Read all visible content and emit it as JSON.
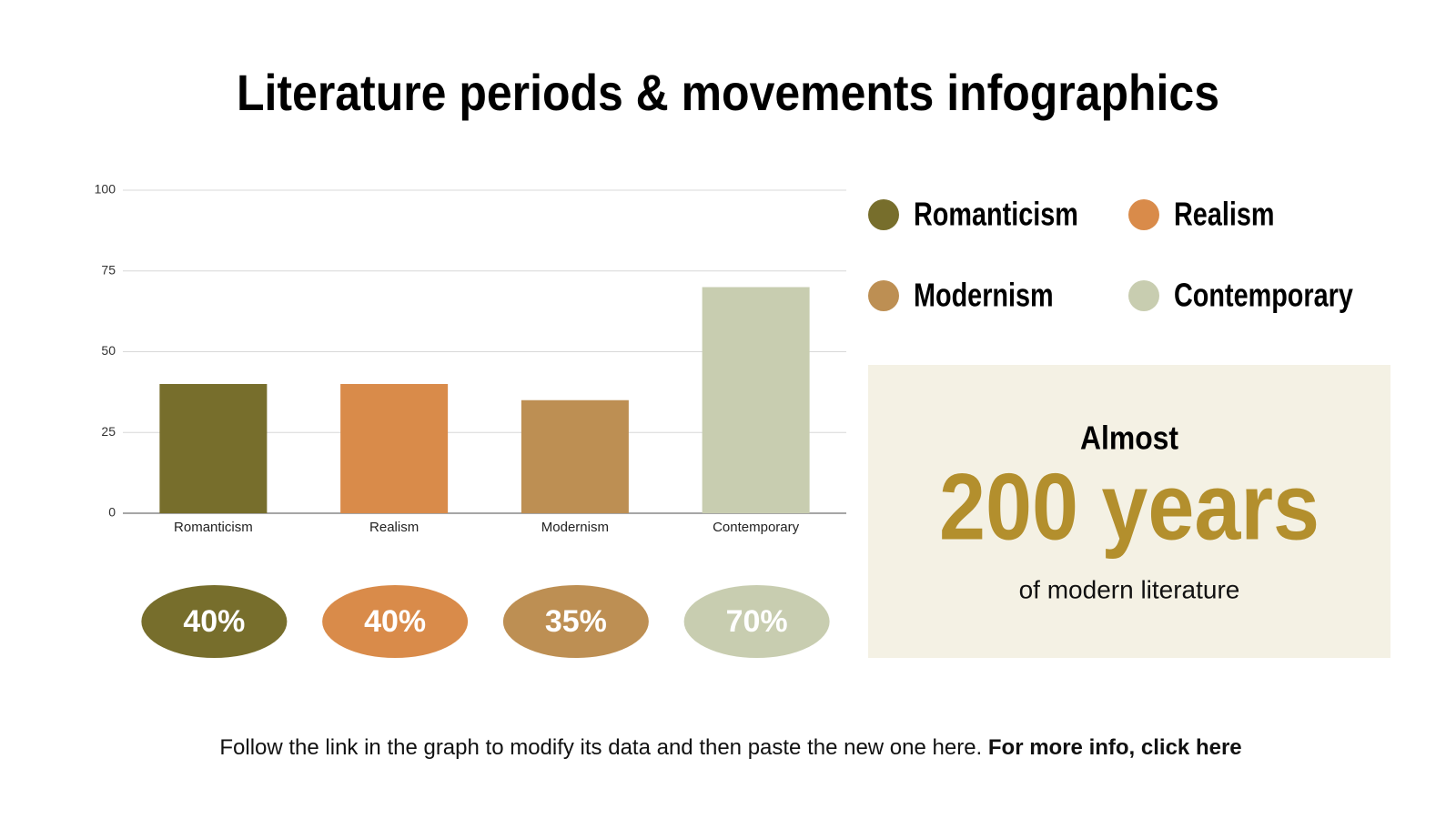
{
  "title": "Literature periods & movements infographics",
  "chart_data": {
    "type": "bar",
    "categories": [
      "Romanticism",
      "Realism",
      "Modernism",
      "Contemporary"
    ],
    "values": [
      40,
      40,
      35,
      70
    ],
    "value_labels": [
      "40%",
      "40%",
      "35%",
      "70%"
    ],
    "colors": [
      "#776e2c",
      "#d98b4a",
      "#bd8f53",
      "#c8cdb0"
    ],
    "ylim": [
      0,
      100
    ],
    "yticks": [
      0,
      25,
      50,
      75,
      100
    ],
    "grid": true
  },
  "callout": {
    "lead": "Almost",
    "headline": "200 years",
    "caption": "of modern literature"
  },
  "footer": {
    "text": "Follow the link in the graph to modify its data and then paste the new one here.",
    "link": "For more info, click here"
  }
}
